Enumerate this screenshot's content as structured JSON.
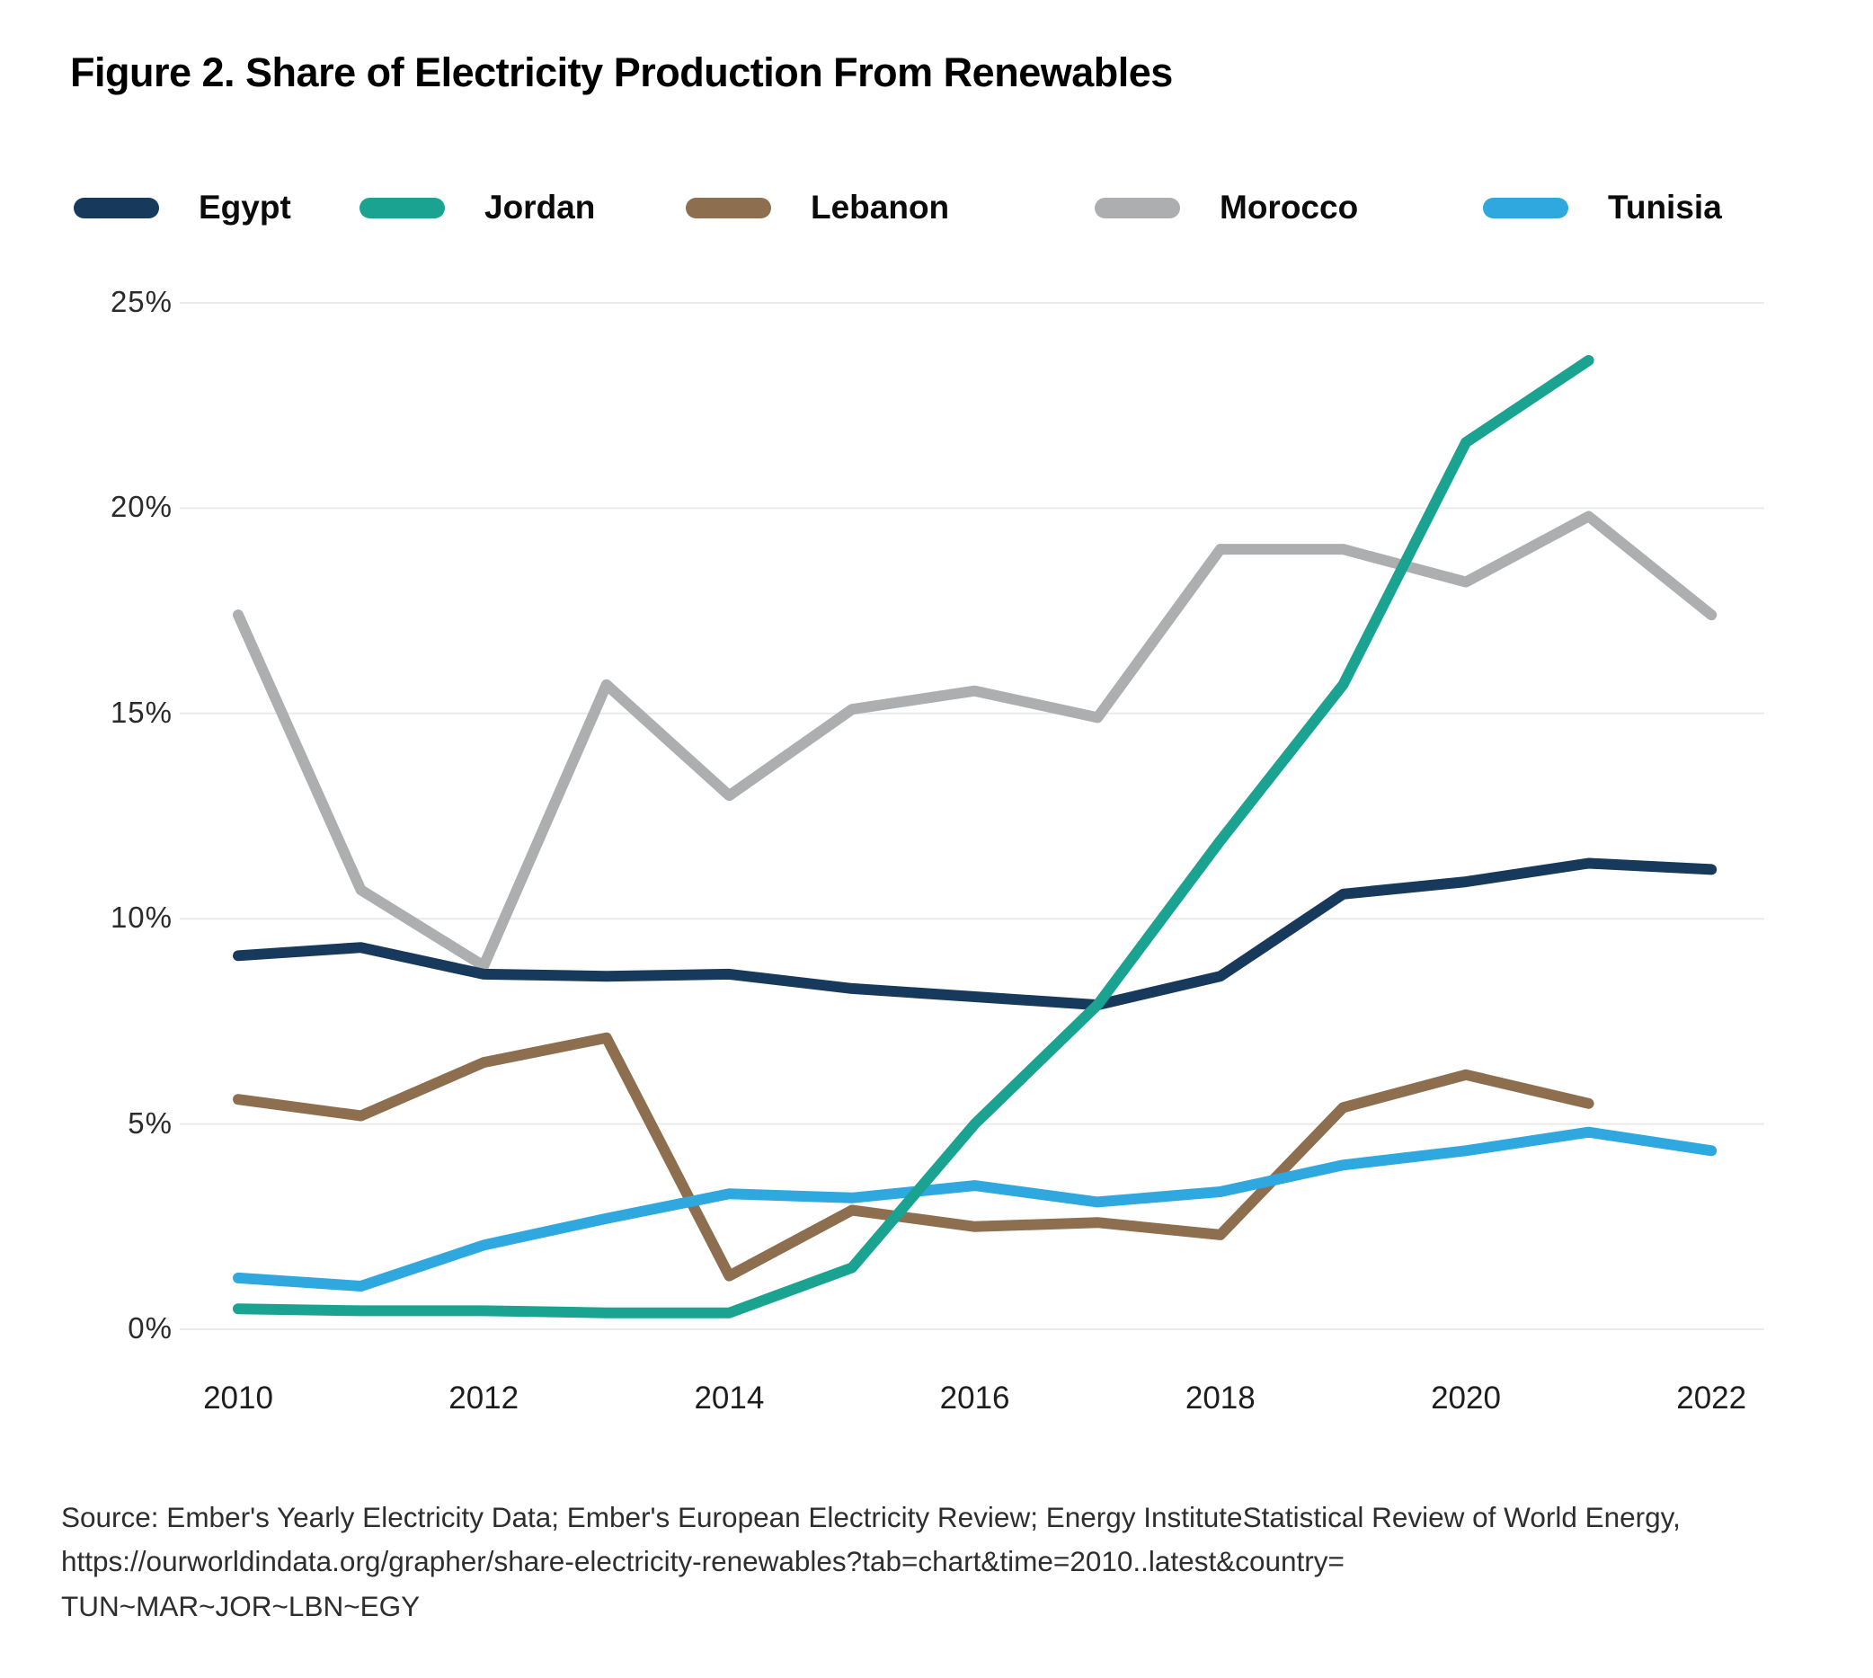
{
  "title": "Figure 2. Share of Electricity Production From Renewables",
  "legend": {
    "items": [
      {
        "label": "Egypt",
        "color": "#17395C"
      },
      {
        "label": "Jordan",
        "color": "#1BA392"
      },
      {
        "label": "Lebanon",
        "color": "#8D6E4E"
      },
      {
        "label": "Morocco",
        "color": "#ACAEB0"
      },
      {
        "label": "Tunisia",
        "color": "#2FA8DF"
      }
    ]
  },
  "chart_data": {
    "type": "line",
    "x": [
      2010,
      2011,
      2012,
      2013,
      2014,
      2015,
      2016,
      2017,
      2018,
      2019,
      2020,
      2021,
      2022
    ],
    "series": [
      {
        "name": "Egypt",
        "color": "#17395C",
        "values": [
          9.1,
          9.3,
          8.65,
          8.6,
          8.65,
          8.3,
          8.1,
          7.9,
          8.6,
          10.6,
          10.9,
          11.35,
          11.2
        ]
      },
      {
        "name": "Jordan",
        "color": "#1BA392",
        "values": [
          0.5,
          0.45,
          0.45,
          0.4,
          0.4,
          1.5,
          5.0,
          7.9,
          11.9,
          15.7,
          21.6,
          23.6,
          null
        ]
      },
      {
        "name": "Lebanon",
        "color": "#8D6E4E",
        "values": [
          5.6,
          5.2,
          6.5,
          7.1,
          1.3,
          2.9,
          2.5,
          2.6,
          2.3,
          5.4,
          6.2,
          5.5,
          null
        ]
      },
      {
        "name": "Morocco",
        "color": "#ACAEB0",
        "values": [
          17.4,
          10.7,
          8.85,
          15.7,
          13.0,
          15.1,
          15.55,
          14.9,
          19.0,
          19.0,
          18.2,
          19.8,
          17.4
        ]
      },
      {
        "name": "Tunisia",
        "color": "#2FA8DF",
        "values": [
          1.25,
          1.05,
          2.05,
          2.7,
          3.3,
          3.2,
          3.5,
          3.1,
          3.35,
          4.0,
          4.35,
          4.8,
          4.35
        ]
      }
    ],
    "draw_order": [
      "Morocco",
      "Lebanon",
      "Tunisia",
      "Egypt",
      "Jordan"
    ],
    "y_ticks": [
      {
        "value": 25,
        "label": "25%"
      },
      {
        "value": 20,
        "label": "20%"
      },
      {
        "value": 15,
        "label": "15%"
      },
      {
        "value": 10,
        "label": "10%"
      },
      {
        "value": 5,
        "label": "5%"
      },
      {
        "value": 0,
        "label": "0%"
      }
    ],
    "x_ticks": [
      2010,
      2012,
      2014,
      2016,
      2018,
      2020,
      2022
    ],
    "ylim": [
      0,
      25
    ],
    "xlim": [
      2010,
      2022
    ],
    "grid": "horizontal",
    "grid_color": "#eaeaea",
    "legend_position": "top",
    "title": "Figure 2. Share of Electricity Production From Renewables",
    "xlabel": "",
    "ylabel": ""
  },
  "source": {
    "lines": [
      "Source: Ember's Yearly Electricity Data; Ember's European Electricity Review; Energy InstituteStatistical Review of World Energy,",
      "https://ourworldindata.org/grapher/share-electricity-renewables?tab=chart&time=2010..latest&country=",
      "TUN~MAR~JOR~LBN~EGY"
    ]
  }
}
